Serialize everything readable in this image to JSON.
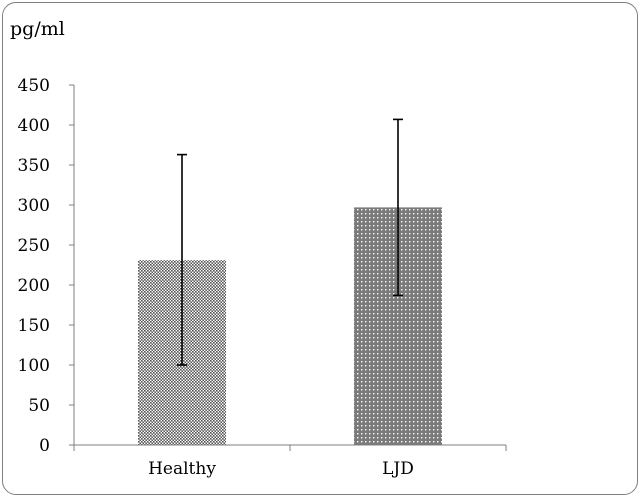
{
  "chart_data": {
    "type": "bar",
    "ylabel": "pg/ml",
    "categories": [
      "Healthy",
      "LJD"
    ],
    "values": [
      231,
      297
    ],
    "error_low": [
      100,
      187
    ],
    "error_high": [
      363,
      407
    ],
    "ylim": [
      0,
      450
    ],
    "yticks": [
      0,
      50,
      100,
      150,
      200,
      250,
      300,
      350,
      400,
      450
    ],
    "grid": false,
    "legend": "none",
    "bar_patterns": [
      "fine-dotted",
      "dotted"
    ]
  }
}
